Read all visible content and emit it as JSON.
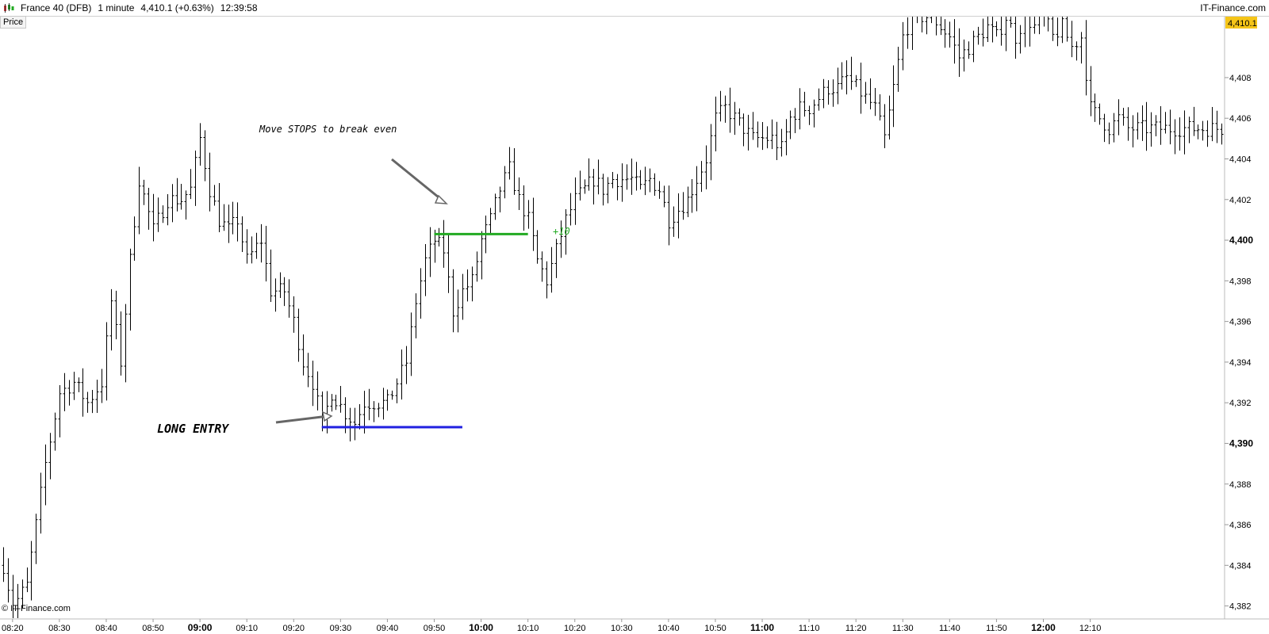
{
  "header": {
    "instrument": "France 40 (DFB)",
    "timeframe": "1 minute",
    "quote": "4,410.1 (+0.63%)",
    "time": "12:39:58",
    "brand": "IT-Finance.com",
    "logo_icon": "candlestick-chart-icon"
  },
  "price_tab": "Price",
  "copyright": "© IT-Finance.com",
  "colors": {
    "bars": "#000000",
    "entry_line": "#2020e0",
    "stop_line": "#22aa22",
    "arrow": "#666666",
    "current_price_bg": "#f5c518"
  },
  "chart_data": {
    "type": "ohlc",
    "instrument": "France 40 (DFB)",
    "interval": "1 minute",
    "x_range": [
      "08:18",
      "12:38"
    ],
    "ylim": [
      4381.4,
      4411.0
    ],
    "y_ticks": [
      {
        "label": "4,382",
        "value": 4382,
        "bold": false
      },
      {
        "label": "4,384",
        "value": 4384,
        "bold": false
      },
      {
        "label": "4,386",
        "value": 4386,
        "bold": false
      },
      {
        "label": "4,388",
        "value": 4388,
        "bold": false
      },
      {
        "label": "4,390",
        "value": 4390,
        "bold": true
      },
      {
        "label": "4,392",
        "value": 4392,
        "bold": false
      },
      {
        "label": "4,394",
        "value": 4394,
        "bold": false
      },
      {
        "label": "4,396",
        "value": 4396,
        "bold": false
      },
      {
        "label": "4,398",
        "value": 4398,
        "bold": false
      },
      {
        "label": "4,400",
        "value": 4400,
        "bold": true
      },
      {
        "label": "4,402",
        "value": 4402,
        "bold": false
      },
      {
        "label": "4,404",
        "value": 4404,
        "bold": false
      },
      {
        "label": "4,406",
        "value": 4406,
        "bold": false
      },
      {
        "label": "4,408",
        "value": 4408,
        "bold": false
      }
    ],
    "x_ticks": [
      {
        "label": "08:20",
        "time": "08:20",
        "bold": false
      },
      {
        "label": "08:30",
        "time": "08:30",
        "bold": false
      },
      {
        "label": "08:40",
        "time": "08:40",
        "bold": false
      },
      {
        "label": "08:50",
        "time": "08:50",
        "bold": false
      },
      {
        "label": "09:00",
        "time": "09:00",
        "bold": true
      },
      {
        "label": "09:10",
        "time": "09:10",
        "bold": false
      },
      {
        "label": "09:20",
        "time": "09:20",
        "bold": false
      },
      {
        "label": "09:30",
        "time": "09:30",
        "bold": false
      },
      {
        "label": "09:40",
        "time": "09:40",
        "bold": false
      },
      {
        "label": "09:50",
        "time": "09:50",
        "bold": false
      },
      {
        "label": "10:00",
        "time": "10:00",
        "bold": true
      },
      {
        "label": "10:10",
        "time": "10:10",
        "bold": false
      },
      {
        "label": "10:20",
        "time": "10:20",
        "bold": false
      },
      {
        "label": "10:30",
        "time": "10:30",
        "bold": false
      },
      {
        "label": "10:40",
        "time": "10:40",
        "bold": false
      },
      {
        "label": "10:50",
        "time": "10:50",
        "bold": false
      },
      {
        "label": "11:00",
        "time": "11:00",
        "bold": true
      },
      {
        "label": "11:10",
        "time": "11:10",
        "bold": false
      },
      {
        "label": "11:20",
        "time": "11:20",
        "bold": false
      },
      {
        "label": "11:30",
        "time": "11:30",
        "bold": false
      },
      {
        "label": "11:40",
        "time": "11:40",
        "bold": false
      },
      {
        "label": "11:50",
        "time": "11:50",
        "bold": false
      },
      {
        "label": "12:00",
        "time": "12:00",
        "bold": true
      },
      {
        "label": "12:10",
        "time": "12:10",
        "bold": false
      }
    ],
    "current_price_label": "4,410.1",
    "current_price": 4410.1,
    "key_points": [
      [
        "08:18",
        4384
      ],
      [
        "08:20",
        4382
      ],
      [
        "08:23",
        4383
      ],
      [
        "08:25",
        4386
      ],
      [
        "08:27",
        4389
      ],
      [
        "08:30",
        4392.5
      ],
      [
        "08:33",
        4393
      ],
      [
        "08:36",
        4392
      ],
      [
        "08:39",
        4393
      ],
      [
        "08:41",
        4397
      ],
      [
        "08:43",
        4394
      ],
      [
        "08:45",
        4399
      ],
      [
        "08:47",
        4403
      ],
      [
        "08:50",
        4400.5
      ],
      [
        "08:53",
        4402
      ],
      [
        "08:56",
        4402
      ],
      [
        "08:58",
        4402.5
      ],
      [
        "09:00",
        4405
      ],
      [
        "09:02",
        4402.5
      ],
      [
        "09:04",
        4401
      ],
      [
        "09:06",
        4400.5
      ],
      [
        "09:08",
        4401
      ],
      [
        "09:10",
        4399
      ],
      [
        "09:13",
        4400
      ],
      [
        "09:15",
        4397.5
      ],
      [
        "09:18",
        4397.5
      ],
      [
        "09:20",
        4396
      ],
      [
        "09:22",
        4394
      ],
      [
        "09:24",
        4393
      ],
      [
        "09:26",
        4391
      ],
      [
        "09:28",
        4392.5
      ],
      [
        "09:31",
        4391.5
      ],
      [
        "09:33",
        4391
      ],
      [
        "09:35",
        4392
      ],
      [
        "09:38",
        4392
      ],
      [
        "09:40",
        4392
      ],
      [
        "09:42",
        4393
      ],
      [
        "09:44",
        4394
      ],
      [
        "09:46",
        4397
      ],
      [
        "09:48",
        4399
      ],
      [
        "09:50",
        4400
      ],
      [
        "09:52",
        4399.5
      ],
      [
        "09:54",
        4396.5
      ],
      [
        "09:56",
        4397.5
      ],
      [
        "09:58",
        4398
      ],
      [
        "10:00",
        4400
      ],
      [
        "10:02",
        4401
      ],
      [
        "10:04",
        4402.5
      ],
      [
        "10:06",
        4403.5
      ],
      [
        "10:08",
        4402
      ],
      [
        "10:10",
        4401
      ],
      [
        "10:12",
        4399
      ],
      [
        "10:14",
        4398
      ],
      [
        "10:16",
        4399.5
      ],
      [
        "10:18",
        4401
      ],
      [
        "10:20",
        4402
      ],
      [
        "10:22",
        4402.5
      ],
      [
        "10:24",
        4403
      ],
      [
        "10:26",
        4402.5
      ],
      [
        "10:28",
        4403
      ],
      [
        "10:30",
        4403
      ],
      [
        "10:32",
        4403
      ],
      [
        "10:34",
        4402.5
      ],
      [
        "10:36",
        4403
      ],
      [
        "10:38",
        4402.5
      ],
      [
        "10:40",
        4401
      ],
      [
        "10:42",
        4401.5
      ],
      [
        "10:44",
        4402
      ],
      [
        "10:46",
        4403
      ],
      [
        "10:48",
        4404
      ],
      [
        "10:50",
        4406
      ],
      [
        "10:52",
        4406.5
      ],
      [
        "10:54",
        4406
      ],
      [
        "10:56",
        4405.5
      ],
      [
        "10:58",
        4405
      ],
      [
        "11:00",
        4405
      ],
      [
        "11:02",
        4405
      ],
      [
        "11:04",
        4404.5
      ],
      [
        "11:06",
        4406
      ],
      [
        "11:08",
        4406.5
      ],
      [
        "11:10",
        4406.5
      ],
      [
        "11:12",
        4407
      ],
      [
        "11:14",
        4407.5
      ],
      [
        "11:16",
        4407.5
      ],
      [
        "11:18",
        4408
      ],
      [
        "11:20",
        4407.5
      ],
      [
        "11:22",
        4407
      ],
      [
        "11:24",
        4406.5
      ],
      [
        "11:26",
        4405
      ],
      [
        "11:28",
        4407.5
      ],
      [
        "11:30",
        4410
      ],
      [
        "11:32",
        4411
      ],
      [
        "11:34",
        4411
      ],
      [
        "11:36",
        4411
      ],
      [
        "11:38",
        4410.5
      ],
      [
        "11:40",
        4410
      ],
      [
        "11:42",
        4409
      ],
      [
        "11:44",
        4409.5
      ],
      [
        "11:46",
        4410
      ],
      [
        "11:48",
        4410.5
      ],
      [
        "11:50",
        4410
      ],
      [
        "11:52",
        4411
      ],
      [
        "11:54",
        4410
      ],
      [
        "11:56",
        4411
      ],
      [
        "11:58",
        4410.5
      ],
      [
        "12:00",
        4411
      ],
      [
        "12:02",
        4410
      ],
      [
        "12:04",
        4410.5
      ],
      [
        "12:06",
        4409.5
      ],
      [
        "12:08",
        4410
      ],
      [
        "12:10",
        4406.5
      ],
      [
        "12:12",
        4406
      ],
      [
        "12:14",
        4405.5
      ],
      [
        "12:16",
        4406
      ],
      [
        "12:18",
        4405.5
      ]
    ],
    "bar_range": 1.5,
    "annotations": {
      "entry_text": "LONG ENTRY",
      "entry_price": 4390.8,
      "entry_line": {
        "from": "09:26",
        "to": "09:56"
      },
      "stop_text": "Move STOPS to break even",
      "stop_price": 4400.3,
      "stop_line": {
        "from": "09:50",
        "to": "10:10"
      },
      "gain_text": "+10"
    }
  }
}
